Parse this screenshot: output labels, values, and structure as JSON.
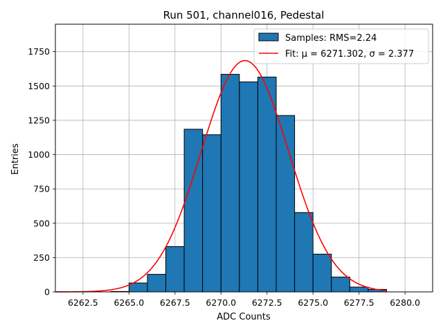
{
  "chart_data": {
    "type": "bar",
    "title": "Run 501, channel016, Pedestal",
    "xlabel": "ADC Counts",
    "ylabel": "Entries",
    "xlim": [
      6261.0,
      6281.5
    ],
    "ylim": [
      0,
      1950
    ],
    "xticks": [
      6262.5,
      6265.0,
      6267.5,
      6270.0,
      6272.5,
      6275.0,
      6277.5,
      6280.0
    ],
    "xtick_labels": [
      "6262.5",
      "6265.0",
      "6267.5",
      "6270.0",
      "6272.5",
      "6275.0",
      "6277.5",
      "6280.0"
    ],
    "yticks": [
      0,
      250,
      500,
      750,
      1000,
      1250,
      1500,
      1750
    ],
    "ytick_labels": [
      "0",
      "250",
      "500",
      "750",
      "1000",
      "1250",
      "1500",
      "1750"
    ],
    "grid": true,
    "legend_position": "upper right",
    "histogram": {
      "name": "Samples: RMS=2.24",
      "color": "#1f77b4",
      "edge_color": "#000000",
      "bin_edges": [
        6264,
        6265,
        6266,
        6267,
        6268,
        6269,
        6270,
        6271,
        6272,
        6273,
        6274,
        6275,
        6276,
        6277,
        6278,
        6279
      ],
      "counts": [
        3,
        65,
        128,
        330,
        1185,
        1145,
        1585,
        1530,
        1565,
        1285,
        578,
        275,
        108,
        35,
        18
      ]
    },
    "fit": {
      "name": "Fit: μ = 6271.302, σ = 2.377",
      "color": "#ff0000",
      "mu": 6271.302,
      "sigma": 2.377,
      "amplitude": 1685,
      "x_range": [
        6261,
        6279
      ]
    }
  }
}
